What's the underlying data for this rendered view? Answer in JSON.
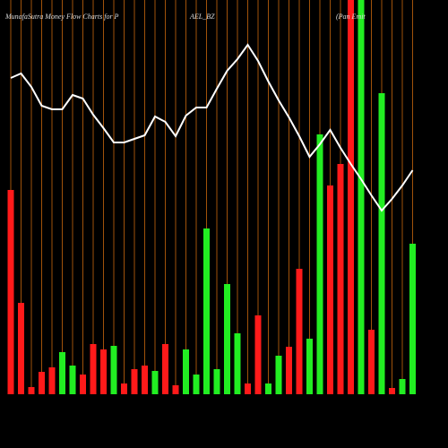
{
  "chart_data": {
    "type": "bar",
    "title_parts": [
      "MunafaSutra  Money Flow  Charts for P",
      "AEL_BZ",
      "(Pan    Emit"
    ],
    "ylim": [
      0,
      440
    ],
    "grid": true,
    "grid_color": "#a0520a",
    "bars": {
      "values": [
        228,
        102,
        8,
        25,
        30,
        47,
        32,
        22,
        56,
        50,
        54,
        12,
        28,
        32,
        26,
        56,
        10,
        50,
        22,
        185,
        28,
        123,
        68,
        12,
        88,
        12,
        43,
        53,
        140,
        62,
        290,
        233,
        257,
        440,
        440,
        72,
        336,
        7,
        17,
        168
      ],
      "colors": [
        "#ff1a1a",
        "#ff1a1a",
        "#ff1a1a",
        "#ff1a1a",
        "#ff1a1a",
        "#22ee22",
        "#22ee22",
        "#ff1a1a",
        "#ff1a1a",
        "#ff1a1a",
        "#22ee22",
        "#ff1a1a",
        "#ff1a1a",
        "#ff1a1a",
        "#22ee22",
        "#ff1a1a",
        "#ff1a1a",
        "#22ee22",
        "#22ee22",
        "#22ee22",
        "#22ee22",
        "#22ee22",
        "#22ee22",
        "#ff1a1a",
        "#ff1a1a",
        "#22ee22",
        "#22ee22",
        "#ff1a1a",
        "#ff1a1a",
        "#22ee22",
        "#22ee22",
        "#ff1a1a",
        "#ff1a1a",
        "#ff1a1a",
        "#22ee22",
        "#ff1a1a",
        "#22ee22",
        "#ff1a1a",
        "#22ee22",
        "#22ee22"
      ]
    },
    "line": {
      "color": "#ffffff",
      "values": [
        353,
        358,
        343,
        322,
        318,
        318,
        334,
        330,
        312,
        297,
        281,
        281,
        285,
        289,
        310,
        304,
        288,
        311,
        320,
        320,
        341,
        361,
        374,
        390,
        372,
        349,
        328,
        309,
        288,
        265,
        279,
        295,
        275,
        257,
        240,
        222,
        205,
        218,
        233,
        250
      ]
    }
  }
}
